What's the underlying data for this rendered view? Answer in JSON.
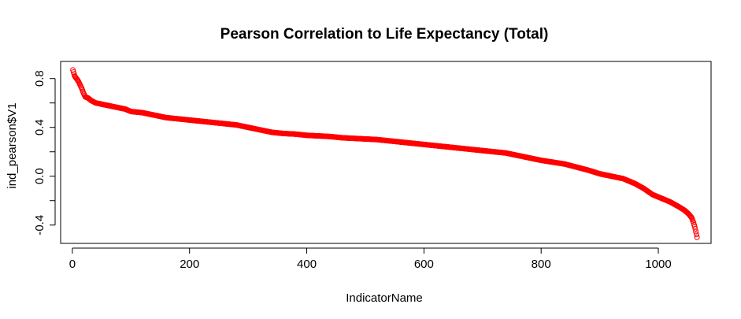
{
  "chart_data": {
    "type": "scatter",
    "title": "Pearson Correlation to Life Expectancy (Total)",
    "xlabel": "IndicatorName",
    "ylabel": "ind_pearson$V1",
    "xlim": [
      -20,
      1090
    ],
    "ylim": [
      -0.55,
      0.94
    ],
    "xticks": [
      {
        "value": 0,
        "label": "0"
      },
      {
        "value": 200,
        "label": "200"
      },
      {
        "value": 400,
        "label": "400"
      },
      {
        "value": 600,
        "label": "600"
      },
      {
        "value": 800,
        "label": "800"
      },
      {
        "value": 1000,
        "label": "1000"
      }
    ],
    "yticks": [
      {
        "value": -0.4,
        "label": "-0.4",
        "show_label": true
      },
      {
        "value": -0.2,
        "label": "-0.2",
        "show_label": false
      },
      {
        "value": 0.0,
        "label": "0.0",
        "show_label": true
      },
      {
        "value": 0.2,
        "label": "0.2",
        "show_label": false
      },
      {
        "value": 0.4,
        "label": "0.4",
        "show_label": true
      },
      {
        "value": 0.6,
        "label": "0.6",
        "show_label": false
      },
      {
        "value": 0.8,
        "label": "0.8",
        "show_label": true
      }
    ],
    "grid": false,
    "marker": "open-circle",
    "marker_color": "#ff0000",
    "n_points": 1066,
    "series": [
      {
        "x": [
          1,
          4,
          7,
          10,
          13,
          16,
          19,
          22,
          27,
          32,
          40,
          50,
          60,
          70,
          80,
          90,
          100,
          120,
          140,
          160,
          180,
          200,
          220,
          240,
          260,
          280,
          300,
          320,
          340,
          360,
          380,
          400,
          420,
          440,
          460,
          480,
          500,
          520,
          540,
          560,
          580,
          600,
          620,
          640,
          660,
          680,
          700,
          720,
          740,
          760,
          780,
          800,
          820,
          840,
          860,
          880,
          900,
          920,
          940,
          960,
          975,
          990,
          1005,
          1020,
          1035,
          1045,
          1052,
          1057,
          1060,
          1063,
          1066
        ],
        "y": [
          0.87,
          0.82,
          0.8,
          0.78,
          0.75,
          0.72,
          0.68,
          0.65,
          0.64,
          0.62,
          0.6,
          0.59,
          0.58,
          0.57,
          0.56,
          0.55,
          0.53,
          0.52,
          0.5,
          0.48,
          0.47,
          0.46,
          0.45,
          0.44,
          0.43,
          0.42,
          0.4,
          0.38,
          0.36,
          0.35,
          0.345,
          0.335,
          0.33,
          0.325,
          0.315,
          0.31,
          0.305,
          0.3,
          0.29,
          0.28,
          0.27,
          0.26,
          0.25,
          0.24,
          0.23,
          0.22,
          0.21,
          0.2,
          0.19,
          0.17,
          0.15,
          0.13,
          0.115,
          0.1,
          0.075,
          0.05,
          0.02,
          0.0,
          -0.02,
          -0.06,
          -0.1,
          -0.15,
          -0.18,
          -0.21,
          -0.25,
          -0.28,
          -0.31,
          -0.34,
          -0.38,
          -0.43,
          -0.5
        ]
      }
    ]
  }
}
